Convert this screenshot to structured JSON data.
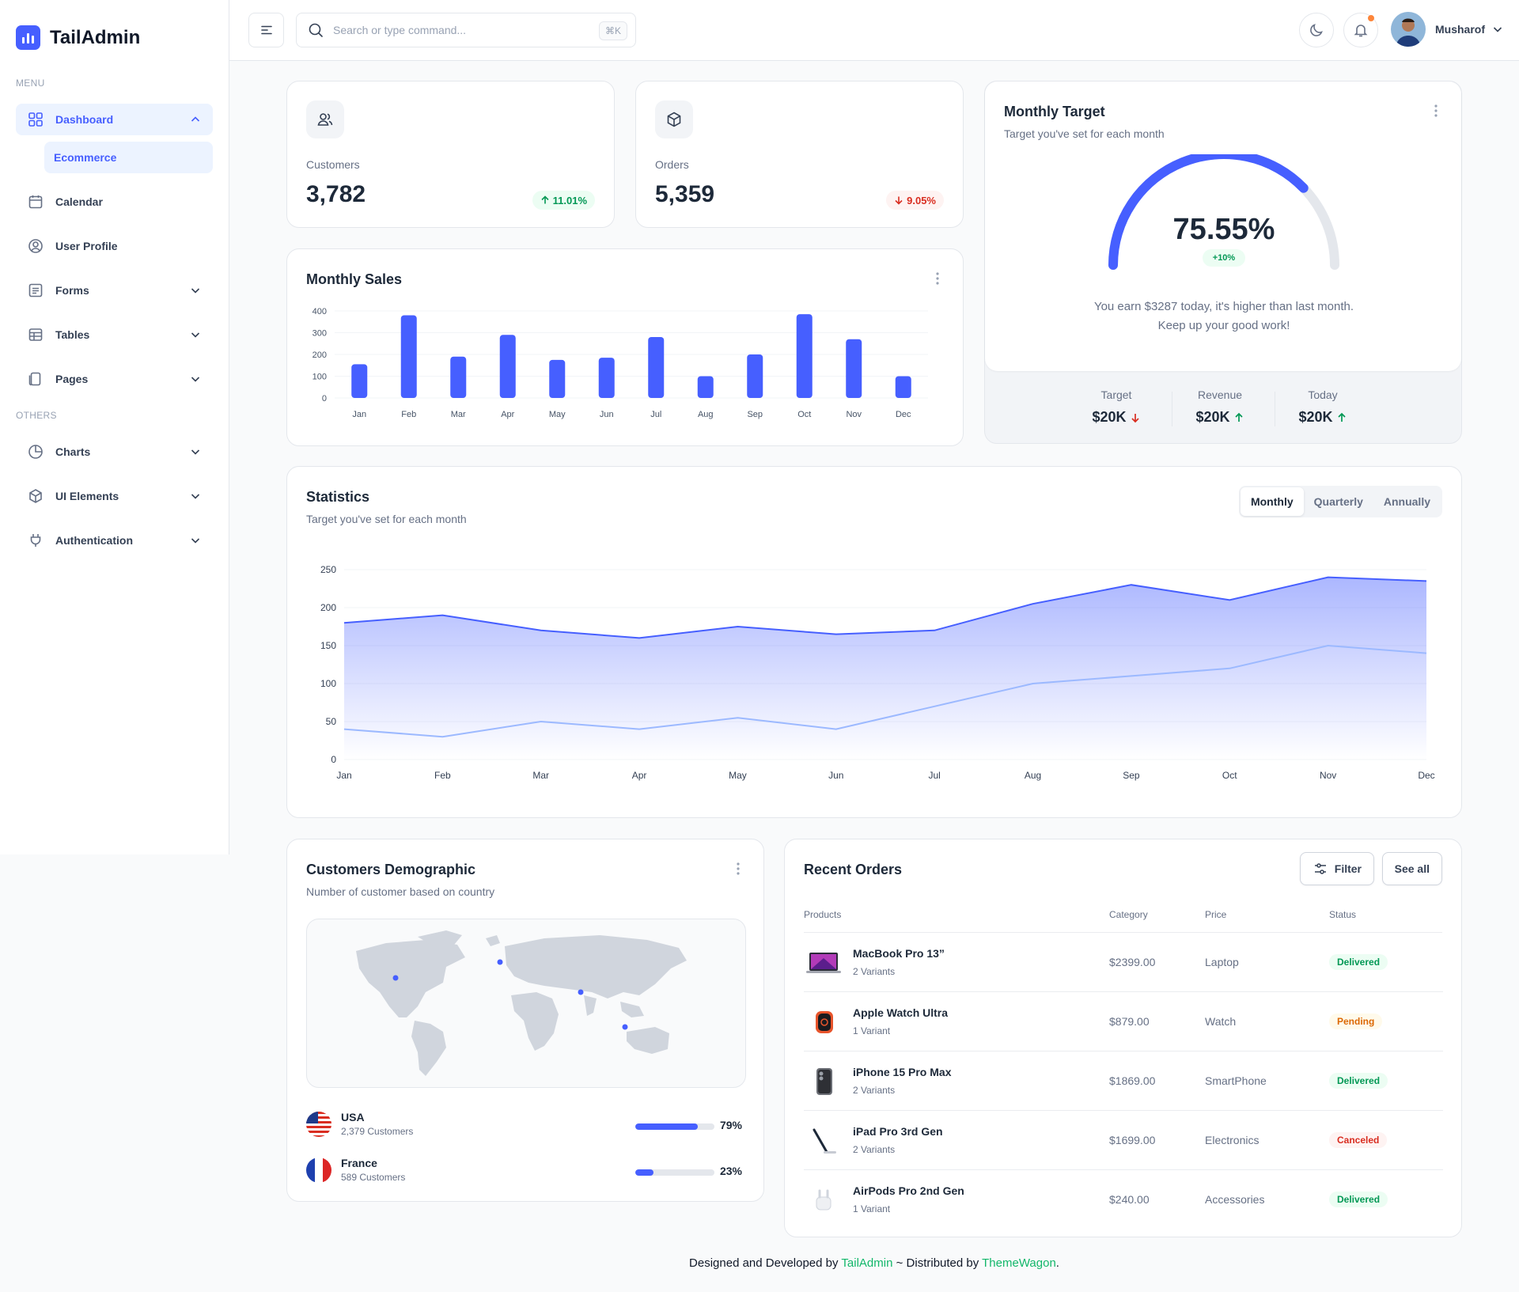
{
  "brand": {
    "name": "TailAdmin"
  },
  "sidebar": {
    "menu_label": "MENU",
    "others_label": "OTHERS",
    "items": [
      {
        "label": "Dashboard",
        "icon": "grid-icon"
      },
      {
        "label": "Calendar",
        "icon": "calendar-icon"
      },
      {
        "label": "User Profile",
        "icon": "user-circle-icon"
      },
      {
        "label": "Forms",
        "icon": "list-icon"
      },
      {
        "label": "Tables",
        "icon": "table-icon"
      },
      {
        "label": "Pages",
        "icon": "page-icon"
      }
    ],
    "sub_items": [
      {
        "label": "Ecommerce"
      }
    ],
    "others": [
      {
        "label": "Charts",
        "icon": "pie-chart-icon"
      },
      {
        "label": "UI Elements",
        "icon": "box-icon"
      },
      {
        "label": "Authentication",
        "icon": "plug-icon"
      }
    ]
  },
  "header": {
    "search_placeholder": "Search or type command...",
    "shortcut": "⌘K",
    "user_name": "Musharof"
  },
  "metrics": [
    {
      "label": "Customers",
      "value": "3,782",
      "change": "11.01%",
      "direction": "up"
    },
    {
      "label": "Orders",
      "value": "5,359",
      "change": "9.05%",
      "direction": "down"
    }
  ],
  "monthly_sales": {
    "title": "Monthly Sales"
  },
  "monthly_target": {
    "title": "Monthly Target",
    "subtitle": "Target you've set for each month",
    "percent": "75.55%",
    "percent_value": 75.55,
    "change": "+10%",
    "message_line1": "You earn $3287 today, it's higher than last month.",
    "message_line2": "Keep up your good work!",
    "stats": [
      {
        "label": "Target",
        "value": "$20K",
        "direction": "down"
      },
      {
        "label": "Revenue",
        "value": "$20K",
        "direction": "up"
      },
      {
        "label": "Today",
        "value": "$20K",
        "direction": "up"
      }
    ]
  },
  "statistics": {
    "title": "Statistics",
    "subtitle": "Target you've set for each month",
    "tabs": [
      "Monthly",
      "Quarterly",
      "Annually"
    ],
    "active_tab": "Monthly"
  },
  "demographic": {
    "title": "Customers Demographic",
    "subtitle": "Number of customer based on country",
    "countries": [
      {
        "name": "USA",
        "customers": "2,379 Customers",
        "percent": "79%",
        "fill": 79
      },
      {
        "name": "France",
        "customers": "589 Customers",
        "percent": "23%",
        "fill": 23
      }
    ]
  },
  "recent_orders": {
    "title": "Recent Orders",
    "filter_label": "Filter",
    "see_all_label": "See all",
    "columns": [
      "Products",
      "Category",
      "Price",
      "Status"
    ],
    "rows": [
      {
        "name": "MacBook Pro 13”",
        "variants": "2 Variants",
        "price": "$2399.00",
        "category": "Laptop",
        "status": "Delivered"
      },
      {
        "name": "Apple Watch Ultra",
        "variants": "1 Variant",
        "price": "$879.00",
        "category": "Watch",
        "status": "Pending"
      },
      {
        "name": "iPhone 15 Pro Max",
        "variants": "2 Variants",
        "price": "$1869.00",
        "category": "SmartPhone",
        "status": "Delivered"
      },
      {
        "name": "iPad Pro 3rd Gen",
        "variants": "2 Variants",
        "price": "$1699.00",
        "category": "Electronics",
        "status": "Canceled"
      },
      {
        "name": "AirPods Pro 2nd Gen",
        "variants": "1 Variant",
        "price": "$240.00",
        "category": "Accessories",
        "status": "Delivered"
      }
    ]
  },
  "footer": {
    "text1": "Designed and Developed by ",
    "link1": "TailAdmin",
    "text2": " ~ Distributed by ",
    "link2": "ThemeWagon",
    "text3": "."
  },
  "colors": {
    "accent": "#465fff",
    "accent_light": "#9cb9ff",
    "success": "#039855",
    "danger": "#d92d20",
    "warning": "#dc6803"
  },
  "chart_data": [
    {
      "type": "bar",
      "categories": [
        "Jan",
        "Feb",
        "Mar",
        "Apr",
        "May",
        "Jun",
        "Jul",
        "Aug",
        "Sep",
        "Oct",
        "Nov",
        "Dec"
      ],
      "values": [
        155,
        380,
        190,
        290,
        175,
        185,
        280,
        100,
        200,
        385,
        270,
        100
      ],
      "ylim": [
        0,
        400
      ],
      "yticks": [
        0,
        100,
        200,
        300,
        400
      ],
      "grid": true
    },
    {
      "type": "area",
      "categories": [
        "Jan",
        "Feb",
        "Mar",
        "Apr",
        "May",
        "Jun",
        "Jul",
        "Aug",
        "Sep",
        "Oct",
        "Nov",
        "Dec"
      ],
      "series": [
        {
          "values": [
            180,
            190,
            170,
            160,
            175,
            165,
            170,
            205,
            230,
            210,
            240,
            235
          ]
        },
        {
          "values": [
            40,
            30,
            50,
            40,
            55,
            40,
            70,
            100,
            110,
            120,
            150,
            140
          ]
        }
      ],
      "ylim": [
        0,
        250
      ],
      "yticks": [
        0,
        50,
        100,
        150,
        200,
        250
      ],
      "grid": true
    }
  ]
}
